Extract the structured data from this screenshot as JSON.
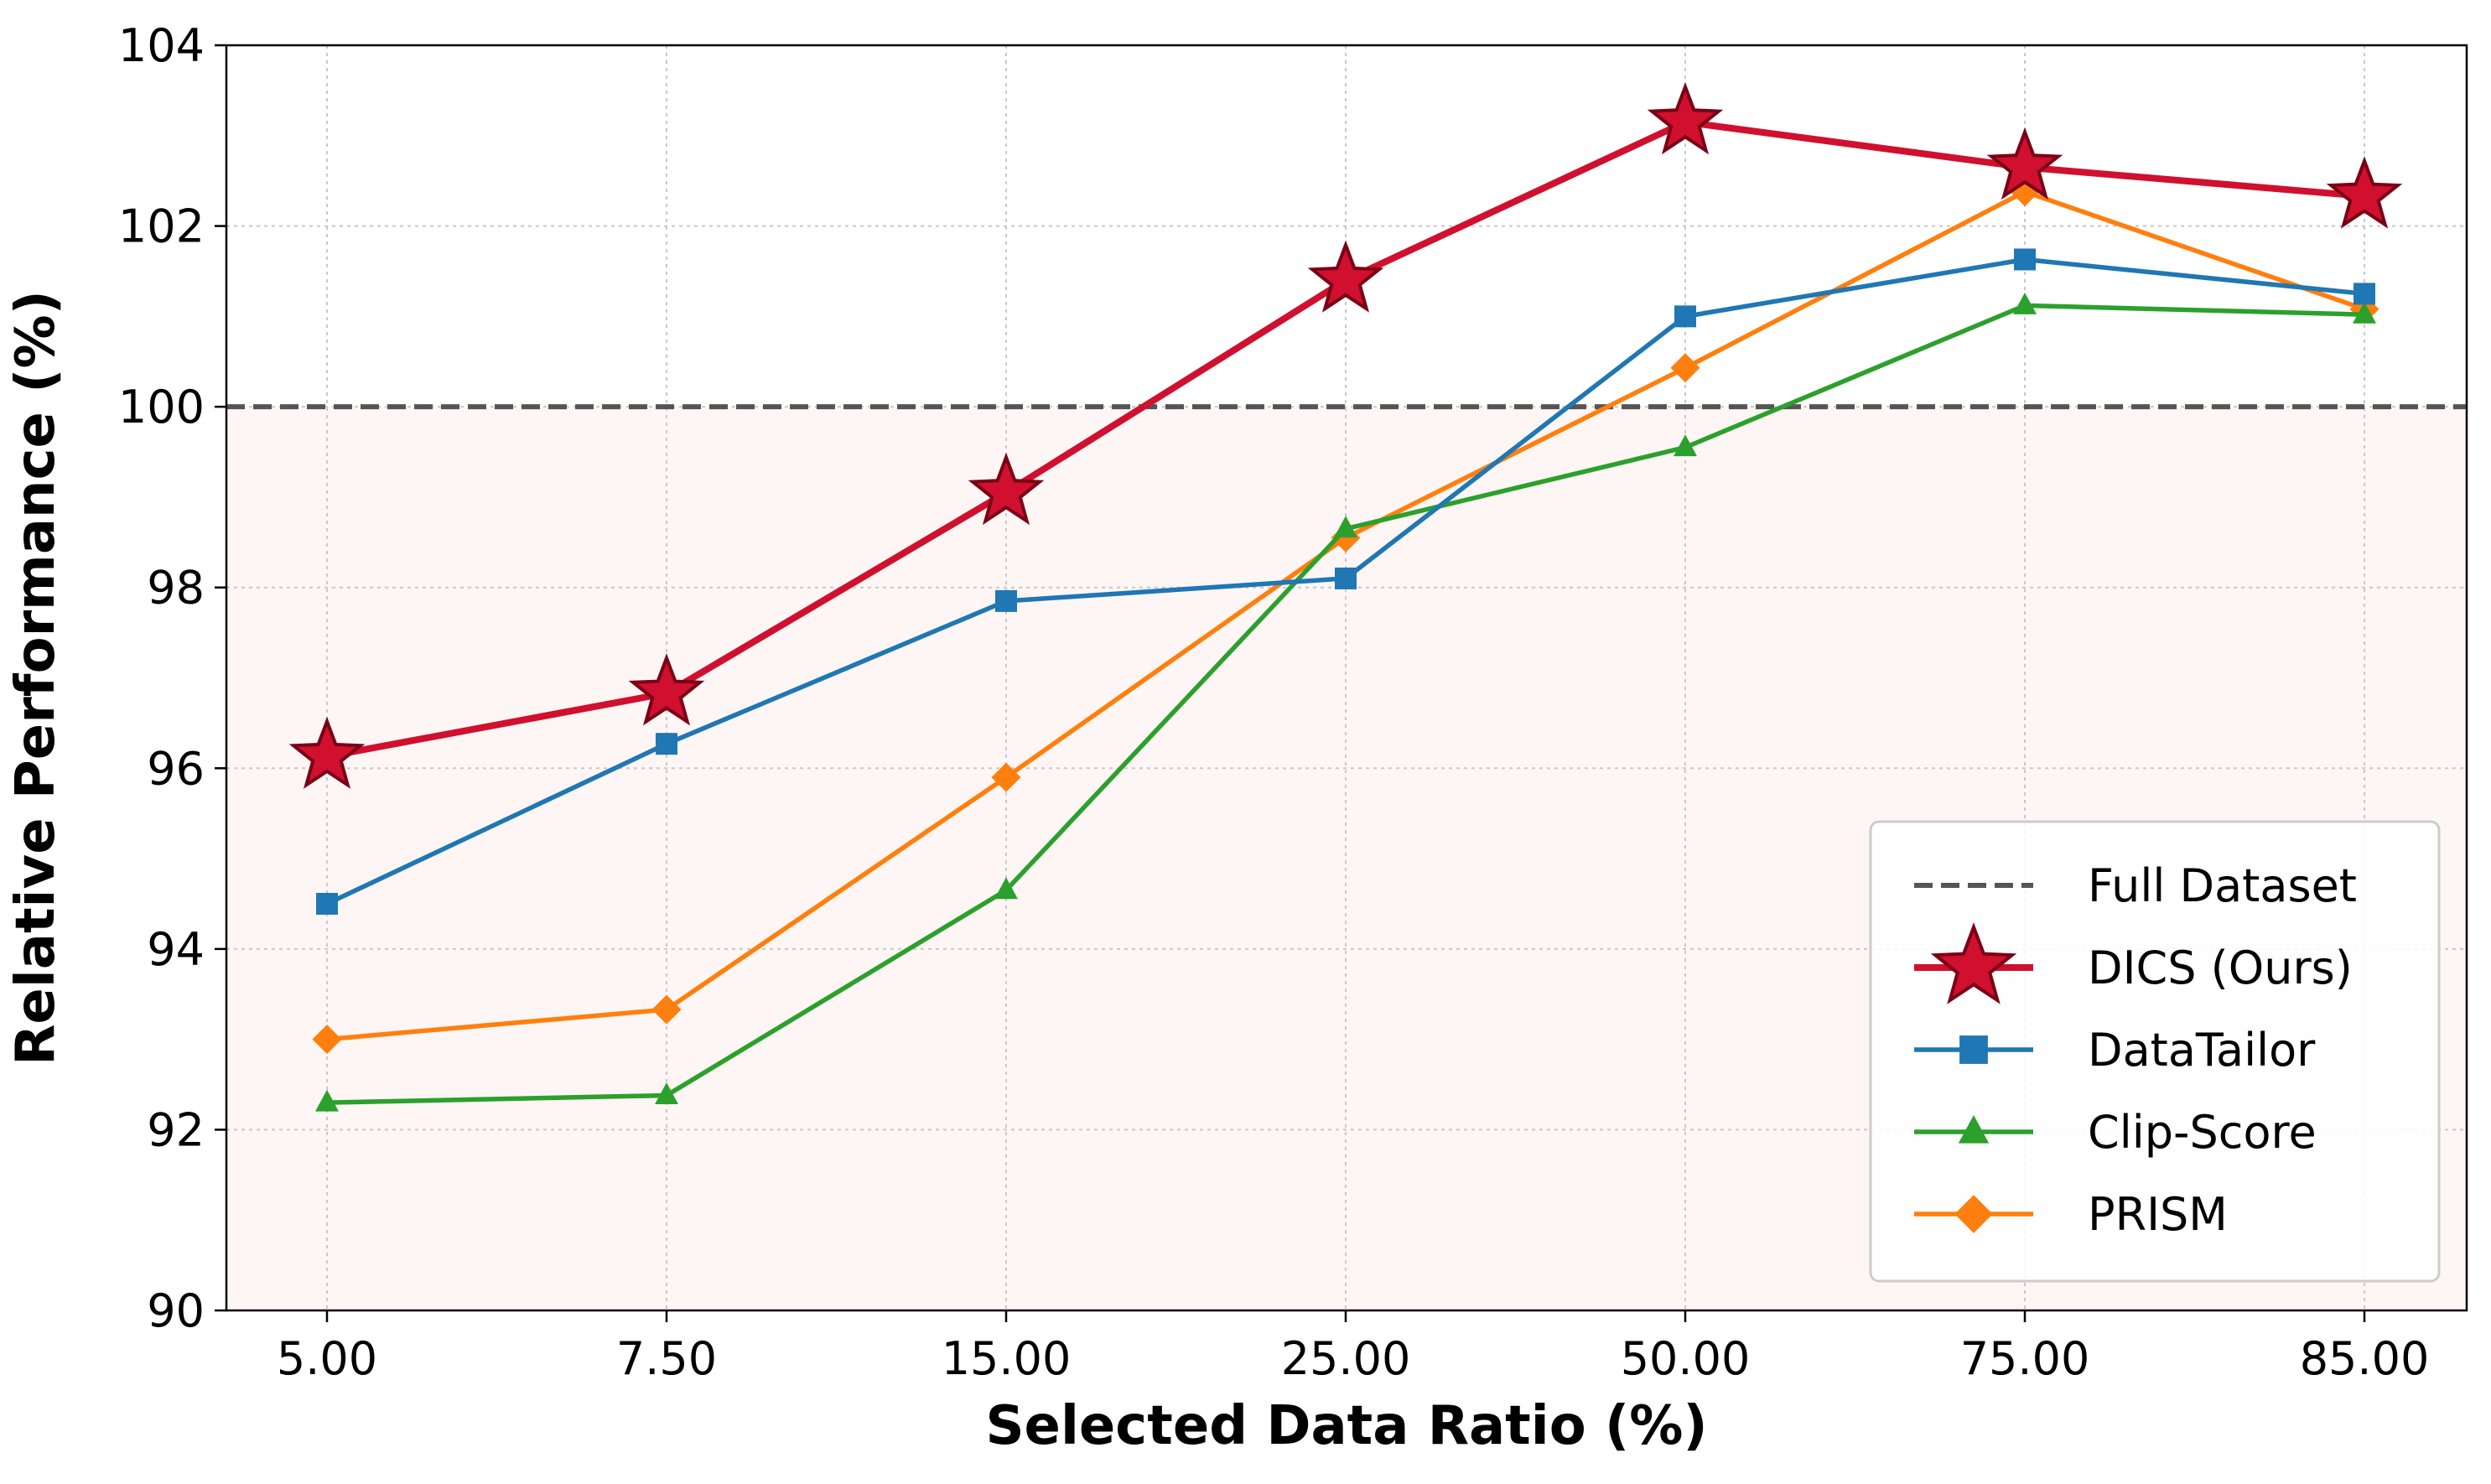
{
  "chart_data": {
    "type": "line",
    "title": "",
    "xlabel": "Selected Data Ratio (%)",
    "ylabel": "Relative Performance (%)",
    "categories": [
      "5.00",
      "7.50",
      "15.00",
      "25.00",
      "50.00",
      "75.00",
      "85.00"
    ],
    "ylim": [
      90,
      104
    ],
    "yticks": [
      "90",
      "92",
      "94",
      "96",
      "98",
      "100",
      "102",
      "104"
    ],
    "grid": true,
    "legend_position": "bottom-right",
    "shaded_region_below": 100,
    "shaded_color": "#fdf6f4",
    "reference_line": {
      "name": "Full Dataset",
      "value": 100,
      "style": "dashed",
      "color": "#555555"
    },
    "series": [
      {
        "name": "DICS (Ours)",
        "color": "#d0102e",
        "marker": "star",
        "values": [
          96.13,
          96.83,
          99.05,
          101.4,
          103.15,
          102.65,
          102.33
        ]
      },
      {
        "name": "DataTailor",
        "color": "#1f77b4",
        "marker": "square",
        "values": [
          94.5,
          96.27,
          97.85,
          98.1,
          101.0,
          101.63,
          101.25
        ]
      },
      {
        "name": "Clip-Score",
        "color": "#2ca02c",
        "marker": "triangle",
        "values": [
          92.3,
          92.38,
          94.65,
          98.65,
          99.55,
          101.12,
          101.02
        ]
      },
      {
        "name": "PRISM",
        "color": "#ff7f0e",
        "marker": "diamond",
        "values": [
          93.0,
          93.33,
          95.9,
          98.55,
          100.43,
          102.38,
          101.08
        ]
      }
    ]
  }
}
